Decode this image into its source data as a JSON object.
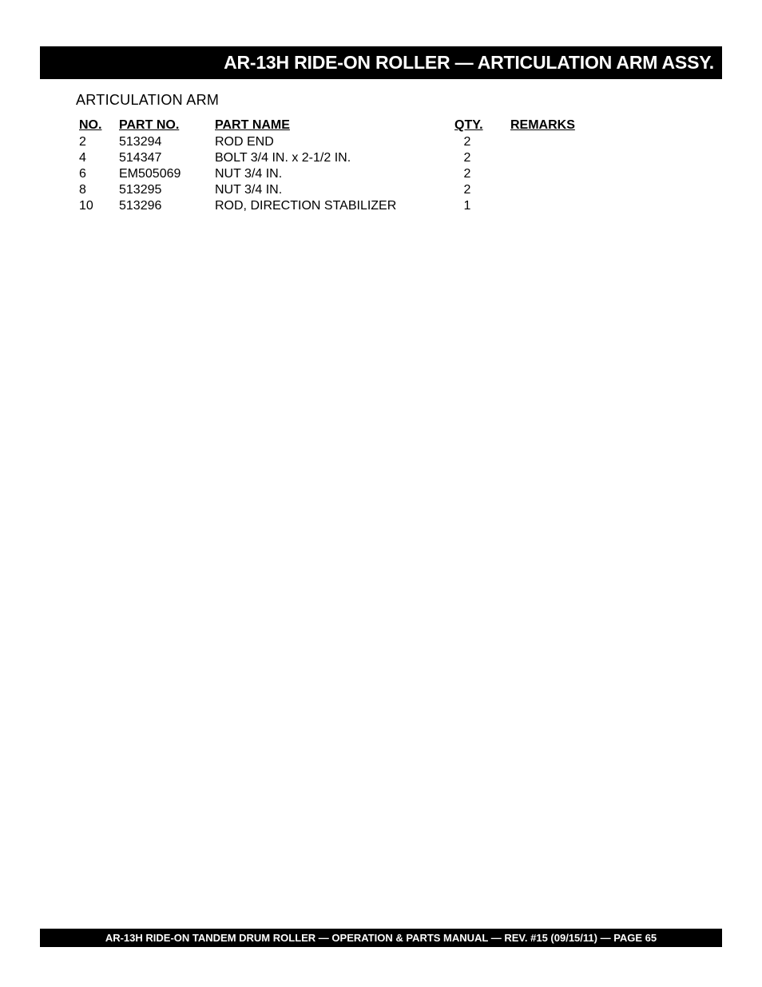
{
  "header": {
    "title": "AR-13H RIDE-ON ROLLER — ARTICULATION ARM ASSY."
  },
  "section": {
    "title": "ARTICULATION ARM"
  },
  "table": {
    "headers": {
      "no": "NO.",
      "partno": "PART NO.",
      "partname": "PART NAME",
      "qty": "QTY.",
      "remarks": "REMARKS"
    },
    "rows": [
      {
        "no": "2",
        "partno": "513294",
        "partname": "ROD END",
        "qty": "2",
        "remarks": ""
      },
      {
        "no": "4",
        "partno": "514347",
        "partname": "BOLT 3/4 IN. x 2-1/2 IN.",
        "qty": "2",
        "remarks": ""
      },
      {
        "no": "6",
        "partno": "EM505069",
        "partname": "NUT 3/4 IN.",
        "qty": "2",
        "remarks": ""
      },
      {
        "no": "8",
        "partno": "513295",
        "partname": "NUT 3/4 IN.",
        "qty": "2",
        "remarks": ""
      },
      {
        "no": "10",
        "partno": "513296",
        "partname": "ROD, DIRECTION STABILIZER",
        "qty": "1",
        "remarks": ""
      }
    ]
  },
  "footer": {
    "text": "AR-13H RIDE-ON TANDEM DRUM ROLLER — OPERATION & PARTS MANUAL — REV. #15  (09/15/11) — PAGE 65"
  }
}
